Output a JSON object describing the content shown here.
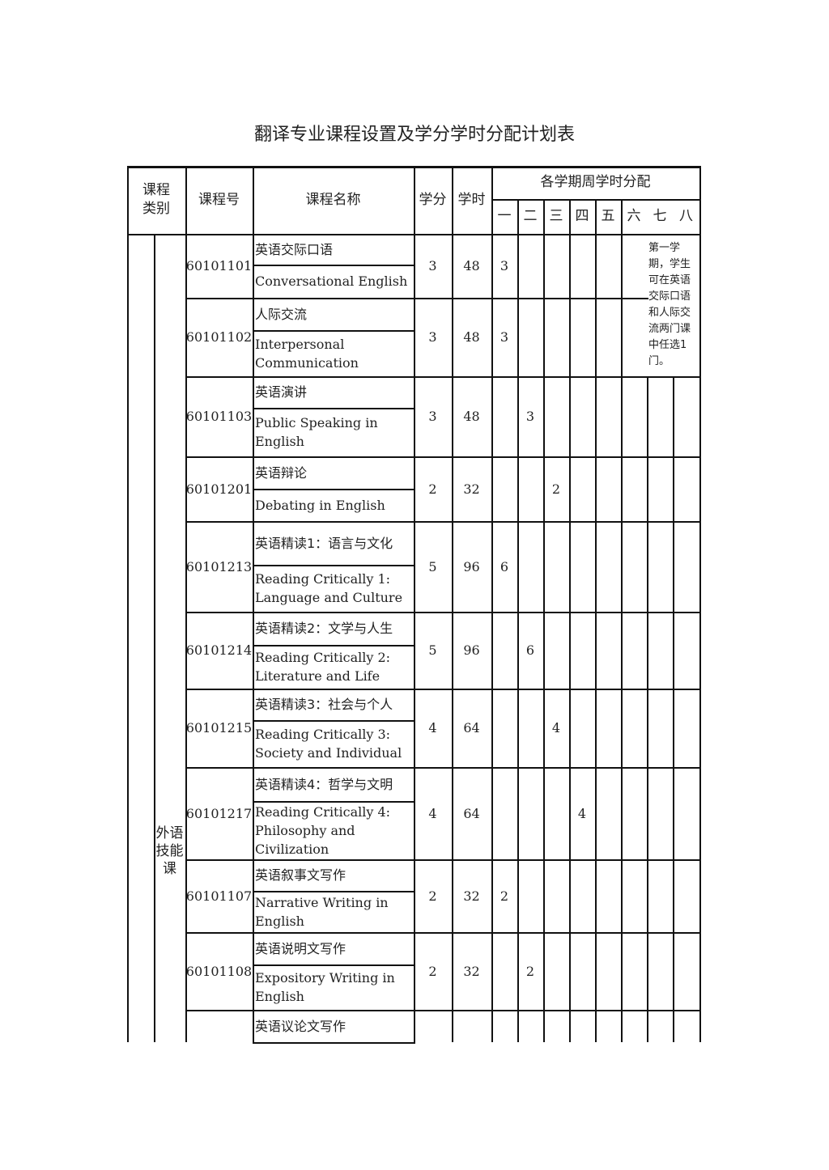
{
  "title": "翻译专业课程设置及学分学时分配计划表",
  "headers": {
    "category": "课程类别",
    "code": "课程号",
    "name": "课程名称",
    "credits": "学分",
    "hours": "学时",
    "semester_group": "各学期周学时分配",
    "semesters": [
      "一",
      "二",
      "三",
      "四",
      "五",
      "六",
      "七",
      "八"
    ]
  },
  "category_label": "外语技能课",
  "note": "第一学期，学生可在英语交际口语和人际交流两门课中任选1门。",
  "courses": [
    {
      "code": "60101101",
      "cn": "英语交际口语",
      "en": "Conversational English",
      "credits": "3",
      "hours": "48",
      "sem": [
        "3",
        "",
        "",
        "",
        "",
        "",
        "",
        ""
      ]
    },
    {
      "code": "60101102",
      "cn": "人际交流",
      "en": "Interpersonal Communication",
      "credits": "3",
      "hours": "48",
      "sem": [
        "3",
        "",
        "",
        "",
        "",
        "",
        "",
        ""
      ]
    },
    {
      "code": "60101103",
      "cn": "英语演讲",
      "en": "Public Speaking in English",
      "credits": "3",
      "hours": "48",
      "sem": [
        "",
        "3",
        "",
        "",
        "",
        "",
        "",
        ""
      ]
    },
    {
      "code": "60101201",
      "cn": "英语辩论",
      "en": "Debating in English",
      "credits": "2",
      "hours": "32",
      "sem": [
        "",
        "",
        "2",
        "",
        "",
        "",
        "",
        ""
      ]
    },
    {
      "code": "60101213",
      "cn": "英语精读1：语言与文化",
      "en": "Reading Critically 1: Language and Culture",
      "credits": "5",
      "hours": "96",
      "sem": [
        "6",
        "",
        "",
        "",
        "",
        "",
        "",
        ""
      ]
    },
    {
      "code": "60101214",
      "cn": "英语精读2：文学与人生",
      "en": "Reading Critically 2: Literature and Life",
      "credits": "5",
      "hours": "96",
      "sem": [
        "",
        "6",
        "",
        "",
        "",
        "",
        "",
        ""
      ]
    },
    {
      "code": "60101215",
      "cn": "英语精读3：社会与个人",
      "en": "Reading Critically 3: Society and Individual",
      "credits": "4",
      "hours": "64",
      "sem": [
        "",
        "",
        "4",
        "",
        "",
        "",
        "",
        ""
      ]
    },
    {
      "code": "60101217",
      "cn": "英语精读4：哲学与文明",
      "en": "Reading Critically 4: Philosophy and Civilization",
      "credits": "4",
      "hours": "64",
      "sem": [
        "",
        "",
        "",
        "4",
        "",
        "",
        "",
        ""
      ]
    },
    {
      "code": "60101107",
      "cn": "英语叙事文写作",
      "en": "Narrative Writing in English",
      "credits": "2",
      "hours": "32",
      "sem": [
        "2",
        "",
        "",
        "",
        "",
        "",
        "",
        ""
      ]
    },
    {
      "code": "60101108",
      "cn": "英语说明文写作",
      "en": "Expository Writing in English",
      "credits": "2",
      "hours": "32",
      "sem": [
        "",
        "2",
        "",
        "",
        "",
        "",
        "",
        ""
      ]
    },
    {
      "code": "",
      "cn": "英语议论文写作",
      "en": "",
      "credits": "",
      "hours": "",
      "sem": [
        "",
        "",
        "",
        "",
        "",
        "",
        "",
        ""
      ]
    }
  ]
}
